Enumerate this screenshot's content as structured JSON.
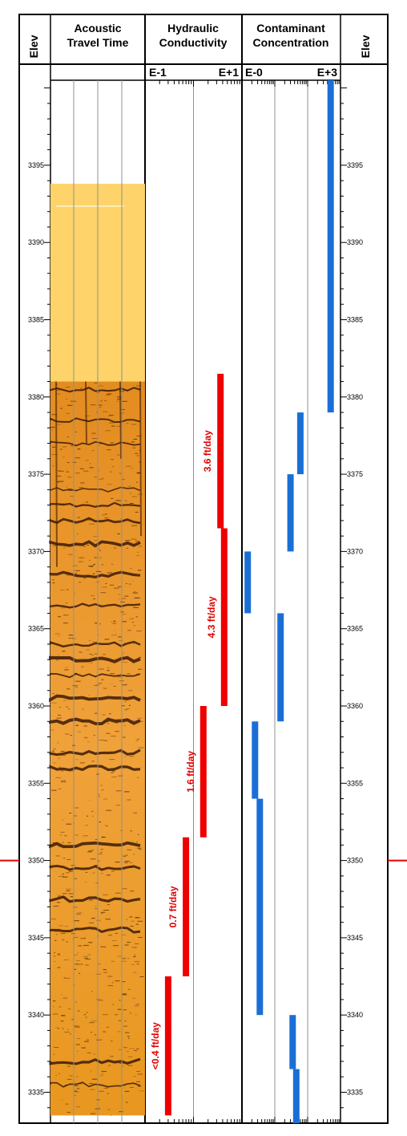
{
  "tracks": {
    "depth_left_title": "Elev",
    "depth_right_title": "Elev",
    "acoustic": {
      "title_line1": "Acoustic",
      "title_line2": "Travel Time"
    },
    "hydraulic": {
      "title_line1": "Hydraulic",
      "title_line2": "Conductivity",
      "scale_left": "E-1",
      "scale_right": "E+1"
    },
    "contaminant": {
      "title_line1": "Contaminant",
      "title_line2": "Concentration",
      "scale_left": "E-0",
      "scale_right": "E+3"
    }
  },
  "chart_data": {
    "type": "well-log",
    "elevation_range": [
      3333,
      3400.5
    ],
    "elevation_ticks": [
      3395,
      3390,
      3385,
      3380,
      3375,
      3370,
      3365,
      3360,
      3355,
      3350,
      3345,
      3340,
      3335
    ],
    "tick_labels": [
      "3395",
      "3390",
      "3385",
      "3380",
      "3375",
      "3370",
      "3365",
      "3360",
      "3355",
      "3350",
      "3345",
      "3340",
      "3335"
    ],
    "marker_elevation": 3350,
    "image_log": {
      "casing_interval": [
        3393.8,
        3381
      ],
      "borehole_image_interval": [
        3381,
        3333.5
      ]
    },
    "hydraulic_conductivity": {
      "scale": "log",
      "range": [
        0.1,
        10
      ],
      "intervals": [
        {
          "top": 3381.5,
          "bottom": 3371.5,
          "value": 3.6,
          "label": "3.6 ft/day"
        },
        {
          "top": 3371.5,
          "bottom": 3360,
          "value": 4.3,
          "label": "4.3 ft/day"
        },
        {
          "top": 3360,
          "bottom": 3351.5,
          "value": 1.6,
          "label": "1.6 ft/day"
        },
        {
          "top": 3351.5,
          "bottom": 3342.5,
          "value": 0.7,
          "label": "0.7 ft/day"
        },
        {
          "top": 3342.5,
          "bottom": 3333.5,
          "value": 0.3,
          "label": "<0.4 ft/day"
        }
      ]
    },
    "contaminant_concentration": {
      "scale": "log",
      "range": [
        1,
        1000
      ],
      "intervals": [
        {
          "top": 3400.5,
          "bottom": 3379,
          "value": 500
        },
        {
          "top": 3379,
          "bottom": 3375,
          "value": 60
        },
        {
          "top": 3375,
          "bottom": 3370,
          "value": 30
        },
        {
          "top": 3370,
          "bottom": 3366,
          "value": 1.5
        },
        {
          "top": 3366,
          "bottom": 3359,
          "value": 15
        },
        {
          "top": 3359,
          "bottom": 3354,
          "value": 2.5
        },
        {
          "top": 3354,
          "bottom": 3340,
          "value": 3.5
        },
        {
          "top": 3340,
          "bottom": 3336.5,
          "value": 35
        },
        {
          "top": 3336.5,
          "bottom": 3333,
          "value": 45
        }
      ]
    }
  }
}
